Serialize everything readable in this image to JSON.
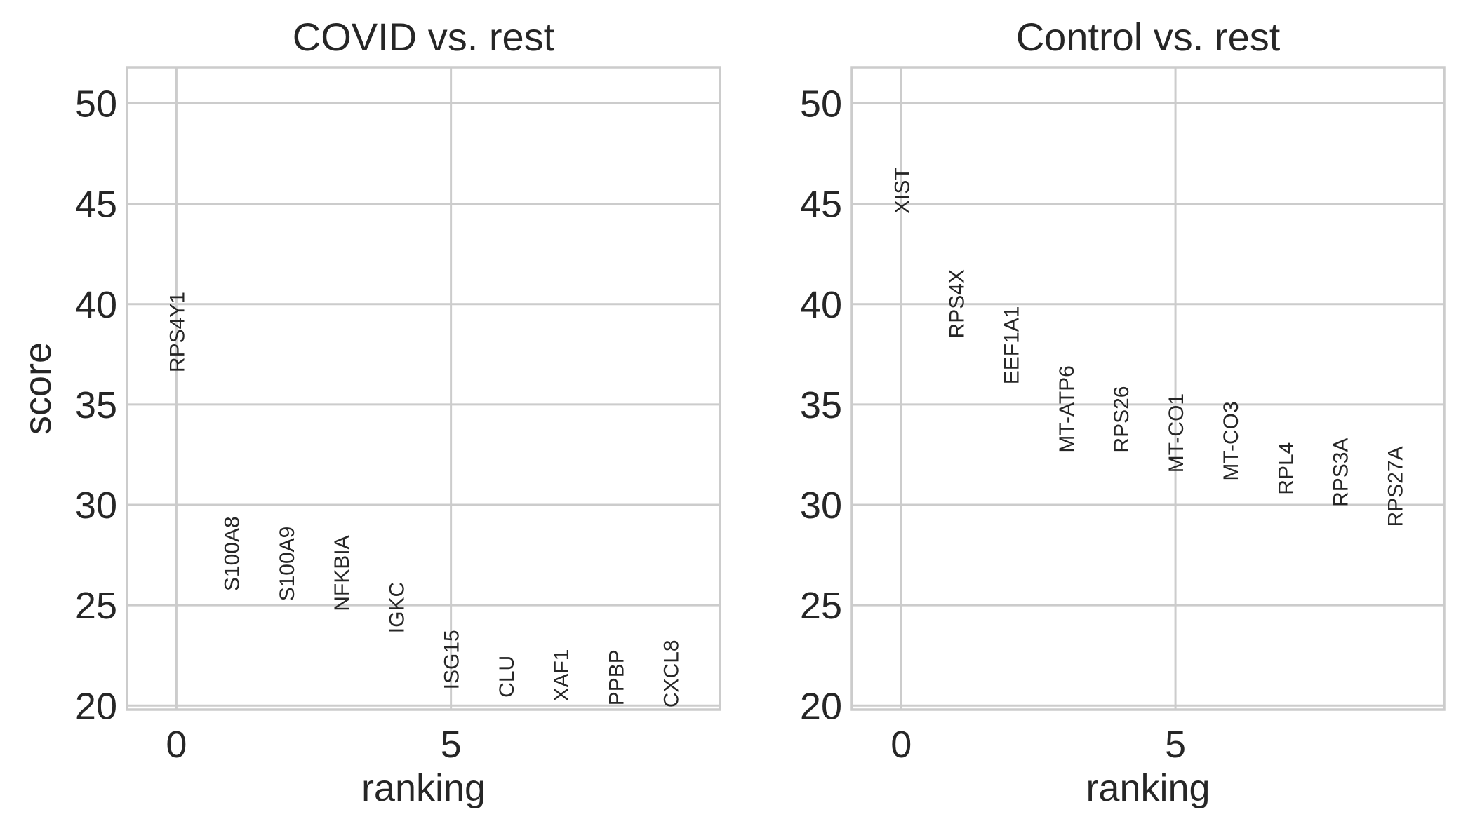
{
  "chart_data": [
    {
      "type": "scatter",
      "title": "COVID vs. rest",
      "xlabel": "ranking",
      "ylabel": "score",
      "xlim": [
        -0.9,
        9.9
      ],
      "ylim": [
        19.8,
        51.8
      ],
      "xticks": [
        0,
        5
      ],
      "xtick_labels": [
        "0",
        "5"
      ],
      "yticks": [
        20,
        25,
        30,
        35,
        40,
        45,
        50
      ],
      "ytick_labels": [
        "20",
        "25",
        "30",
        "35",
        "40",
        "45",
        "50"
      ],
      "grid": true,
      "points": [
        {
          "x": 0,
          "y": 36.6,
          "label": "RPS4Y1"
        },
        {
          "x": 1,
          "y": 25.7,
          "label": "S100A8"
        },
        {
          "x": 2,
          "y": 25.2,
          "label": "S100A9"
        },
        {
          "x": 3,
          "y": 24.7,
          "label": "NFKBIA"
        },
        {
          "x": 4,
          "y": 23.6,
          "label": "IGKC"
        },
        {
          "x": 5,
          "y": 20.8,
          "label": "ISG15"
        },
        {
          "x": 6,
          "y": 20.4,
          "label": "CLU"
        },
        {
          "x": 7,
          "y": 20.2,
          "label": "XAF1"
        },
        {
          "x": 8,
          "y": 20.0,
          "label": "PPBP"
        },
        {
          "x": 9,
          "y": 19.9,
          "label": "CXCL8"
        }
      ]
    },
    {
      "type": "scatter",
      "title": "Control vs. rest",
      "xlabel": "ranking",
      "ylabel": "",
      "xlim": [
        -0.9,
        9.9
      ],
      "ylim": [
        19.8,
        51.8
      ],
      "xticks": [
        0,
        5
      ],
      "xtick_labels": [
        "0",
        "5"
      ],
      "yticks": [
        20,
        25,
        30,
        35,
        40,
        45,
        50
      ],
      "ytick_labels": [
        "20",
        "25",
        "30",
        "35",
        "40",
        "45",
        "50"
      ],
      "grid": true,
      "points": [
        {
          "x": 0,
          "y": 44.5,
          "label": "XIST"
        },
        {
          "x": 1,
          "y": 38.3,
          "label": "RPS4X"
        },
        {
          "x": 2,
          "y": 36.0,
          "label": "EEF1A1"
        },
        {
          "x": 3,
          "y": 32.6,
          "label": "MT-ATP6"
        },
        {
          "x": 4,
          "y": 32.6,
          "label": "RPS26"
        },
        {
          "x": 5,
          "y": 31.6,
          "label": "MT-CO1"
        },
        {
          "x": 6,
          "y": 31.2,
          "label": "MT-CO3"
        },
        {
          "x": 7,
          "y": 30.5,
          "label": "RPL4"
        },
        {
          "x": 8,
          "y": 29.9,
          "label": "RPS3A"
        },
        {
          "x": 9,
          "y": 28.9,
          "label": "RPS27A"
        }
      ]
    }
  ]
}
